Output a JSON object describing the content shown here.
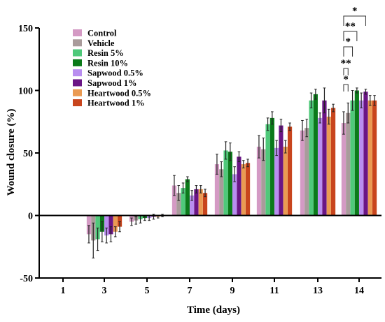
{
  "chart_data": {
    "type": "bar",
    "title": "",
    "xlabel": "Time (days)",
    "ylabel": "Wound closure (%)",
    "ylim": [
      -50,
      150
    ],
    "yticks": [
      -50,
      0,
      50,
      100,
      150
    ],
    "grid": false,
    "legend_position": "top-left",
    "categories": [
      "1",
      "3",
      "5",
      "7",
      "9",
      "11",
      "13",
      "14"
    ],
    "series": [
      {
        "name": "Control",
        "color": "#d49ac4",
        "values": [
          0,
          -15,
          -5,
          24,
          41,
          55,
          68,
          74
        ],
        "errors": [
          0,
          7,
          3,
          8,
          8,
          9,
          8,
          9
        ]
      },
      {
        "name": "Vehicle",
        "color": "#a99b9b",
        "values": [
          0,
          -20,
          -4,
          18,
          37,
          53,
          70,
          82
        ],
        "errors": [
          0,
          14,
          3,
          6,
          6,
          9,
          7,
          8
        ]
      },
      {
        "name": "Resin 5%",
        "color": "#4fc97a",
        "values": [
          0,
          -19,
          -3,
          22,
          52,
          73,
          92,
          92
        ],
        "errors": [
          0,
          9,
          3,
          4,
          7,
          5,
          6,
          8
        ]
      },
      {
        "name": "Resin 10%",
        "color": "#0b7a1a",
        "values": [
          0,
          -13,
          -2,
          29,
          51,
          78,
          97,
          100
        ],
        "errors": [
          0,
          8,
          2,
          2,
          7,
          5,
          4,
          2
        ]
      },
      {
        "name": "Sapwood 0.5%",
        "color": "#b98ef0",
        "values": [
          0,
          -16,
          -2,
          16,
          33,
          54,
          78,
          92
        ],
        "errors": [
          0,
          6,
          2,
          4,
          6,
          6,
          4,
          6
        ]
      },
      {
        "name": "Sapwood 1%",
        "color": "#6a1585",
        "values": [
          0,
          -15,
          -1,
          21,
          47,
          72,
          92,
          99
        ],
        "errors": [
          0,
          6,
          2,
          3,
          4,
          5,
          10,
          2
        ]
      },
      {
        "name": "Heartwood 0.5%",
        "color": "#ea9a52",
        "values": [
          0,
          -13,
          -1,
          21,
          41,
          55,
          79,
          92
        ],
        "errors": [
          0,
          4,
          1,
          3,
          3,
          5,
          6,
          4
        ]
      },
      {
        "name": "Heartwood 1%",
        "color": "#c8451d",
        "values": [
          0,
          -9,
          0,
          18,
          42,
          71,
          86,
          92
        ],
        "errors": [
          0,
          4,
          1,
          3,
          3,
          3,
          3,
          4
        ]
      }
    ],
    "significance_day14": [
      {
        "label": "*",
        "from": "Control",
        "to": "Sapwood 1%"
      },
      {
        "label": "**",
        "from": "Control",
        "to": "Resin 10%"
      },
      {
        "label": "*",
        "from": "Control",
        "to": "Resin 5%"
      },
      {
        "label": "**",
        "from": "Control",
        "to": "Vehicle"
      },
      {
        "label": "*",
        "from": "Control",
        "to": "Vehicle"
      }
    ]
  }
}
